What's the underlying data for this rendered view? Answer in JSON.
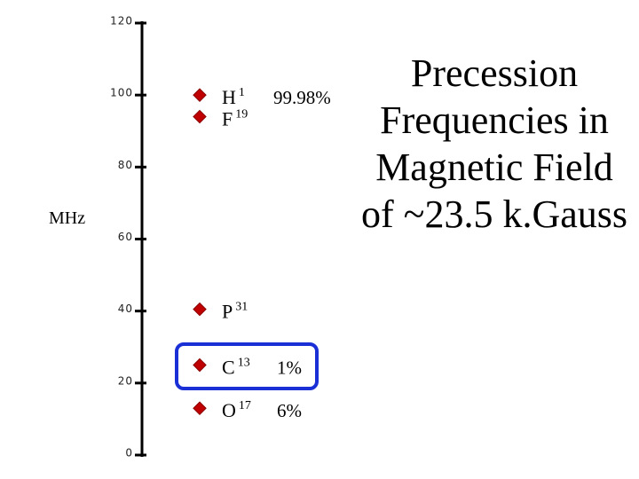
{
  "chart_data": {
    "type": "scatter",
    "title_lines": [
      "Precession",
      "Frequencies in",
      "Magnetic Field",
      "of ~23.5 k.Gauss"
    ],
    "y_label": "MHz",
    "ylim": [
      0,
      120
    ],
    "yticks": [
      0,
      20,
      40,
      60,
      80,
      100,
      120
    ],
    "color": "#c00000",
    "points": [
      {
        "element": "H",
        "isotope": "1",
        "abundance": "99.98%",
        "value": 100
      },
      {
        "element": "F",
        "isotope": "19",
        "value": 94
      },
      {
        "element": "P",
        "isotope": "31",
        "value": 40.5
      },
      {
        "element": "C",
        "isotope": "13",
        "abundance": "1%",
        "value": 25
      },
      {
        "element": "O",
        "isotope": "17",
        "abundance": "6%",
        "value": 13
      }
    ]
  }
}
